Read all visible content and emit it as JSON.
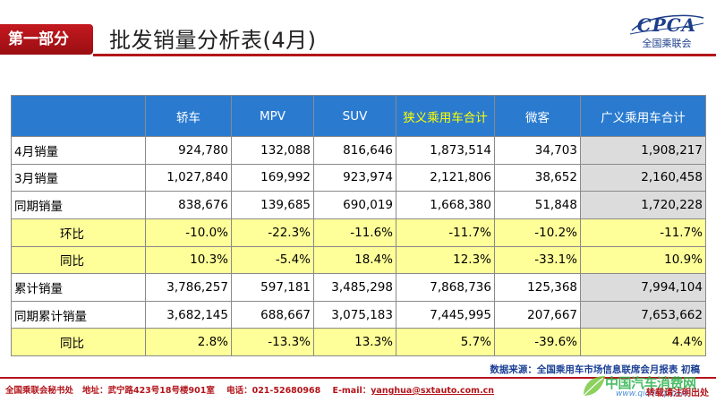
{
  "header": {
    "section": "第一部分",
    "title": "批发销量分析表(4月)",
    "logo_mark": "CPCA",
    "logo_cn": "全国乘联会"
  },
  "colors": {
    "brand_red": "#b3151a",
    "table_header_blue": "#2a7bd0",
    "highlight_yellow": "#ffff99"
  },
  "table": {
    "columns": [
      "",
      "轿车",
      "MPV",
      "SUV",
      "狭义乘用车合计",
      "微客",
      "广义乘用车合计"
    ],
    "rows": [
      {
        "label": "4月销量",
        "values": [
          "924,780",
          "132,088",
          "816,646",
          "1,873,514",
          "34,703",
          "1,908,217"
        ]
      },
      {
        "label": "3月销量",
        "values": [
          "1,027,840",
          "169,992",
          "923,974",
          "2,121,806",
          "38,652",
          "2,160,458"
        ]
      },
      {
        "label": "同期销量",
        "values": [
          "838,676",
          "139,685",
          "690,019",
          "1,668,380",
          "51,848",
          "1,720,228"
        ]
      },
      {
        "label": "环比",
        "values": [
          "-10.0%",
          "-22.3%",
          "-11.6%",
          "-11.7%",
          "-10.2%",
          "-11.7%"
        ]
      },
      {
        "label": "同比",
        "values": [
          "10.3%",
          "-5.4%",
          "18.4%",
          "12.3%",
          "-33.1%",
          "10.9%"
        ]
      },
      {
        "label": "累计销量",
        "values": [
          "3,786,257",
          "597,181",
          "3,485,298",
          "7,868,736",
          "125,368",
          "7,994,104"
        ]
      },
      {
        "label": "同期累计销量",
        "values": [
          "3,682,145",
          "688,667",
          "3,075,183",
          "7,445,995",
          "207,667",
          "7,653,662"
        ]
      },
      {
        "label": "同比",
        "values": [
          "2.8%",
          "-13.3%",
          "13.3%",
          "5.7%",
          "-39.6%",
          "4.4%"
        ]
      }
    ]
  },
  "source": "数据来源：全国乘用车市场信息联席会月报表 初稿",
  "footer": {
    "org": "全国乘联会秘书处",
    "address": "地址：武宁路423号18号楼901室",
    "phone": "电话：021-52680968",
    "email_label": "E-mail：",
    "email": "yanghua@sxtauto.com.cn",
    "page": "转载请注明出处"
  },
  "watermark": {
    "main": "中国汽车消费网",
    "sub": "www.qichecp.com"
  }
}
